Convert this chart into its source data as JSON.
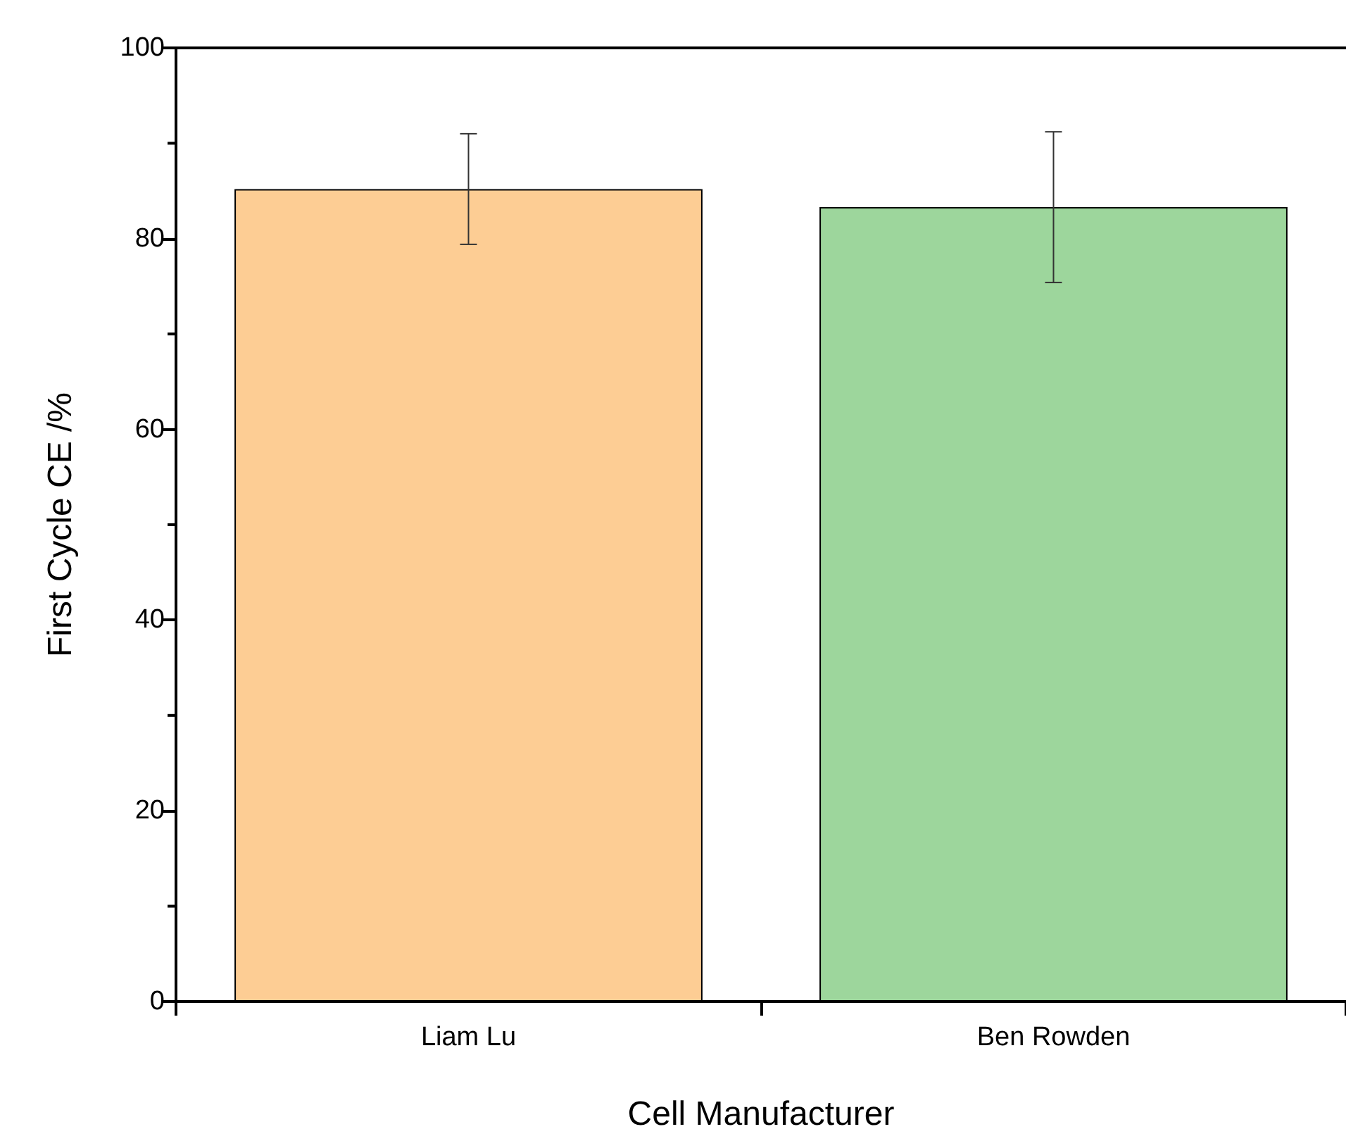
{
  "chart_data": {
    "type": "bar",
    "xlabel": "Cell Manufacturer",
    "ylabel": "First Cycle CE /%",
    "categories": [
      "Liam Lu",
      "Ben Rowden"
    ],
    "values": [
      85.2,
      83.3
    ],
    "colors": [
      "#fdcd94",
      "#9dd69c"
    ],
    "errors": [
      5.8,
      7.9
    ],
    "ylim": [
      0,
      100
    ],
    "yticks": [
      0,
      20,
      40,
      60,
      80,
      100
    ],
    "grid": false
  }
}
